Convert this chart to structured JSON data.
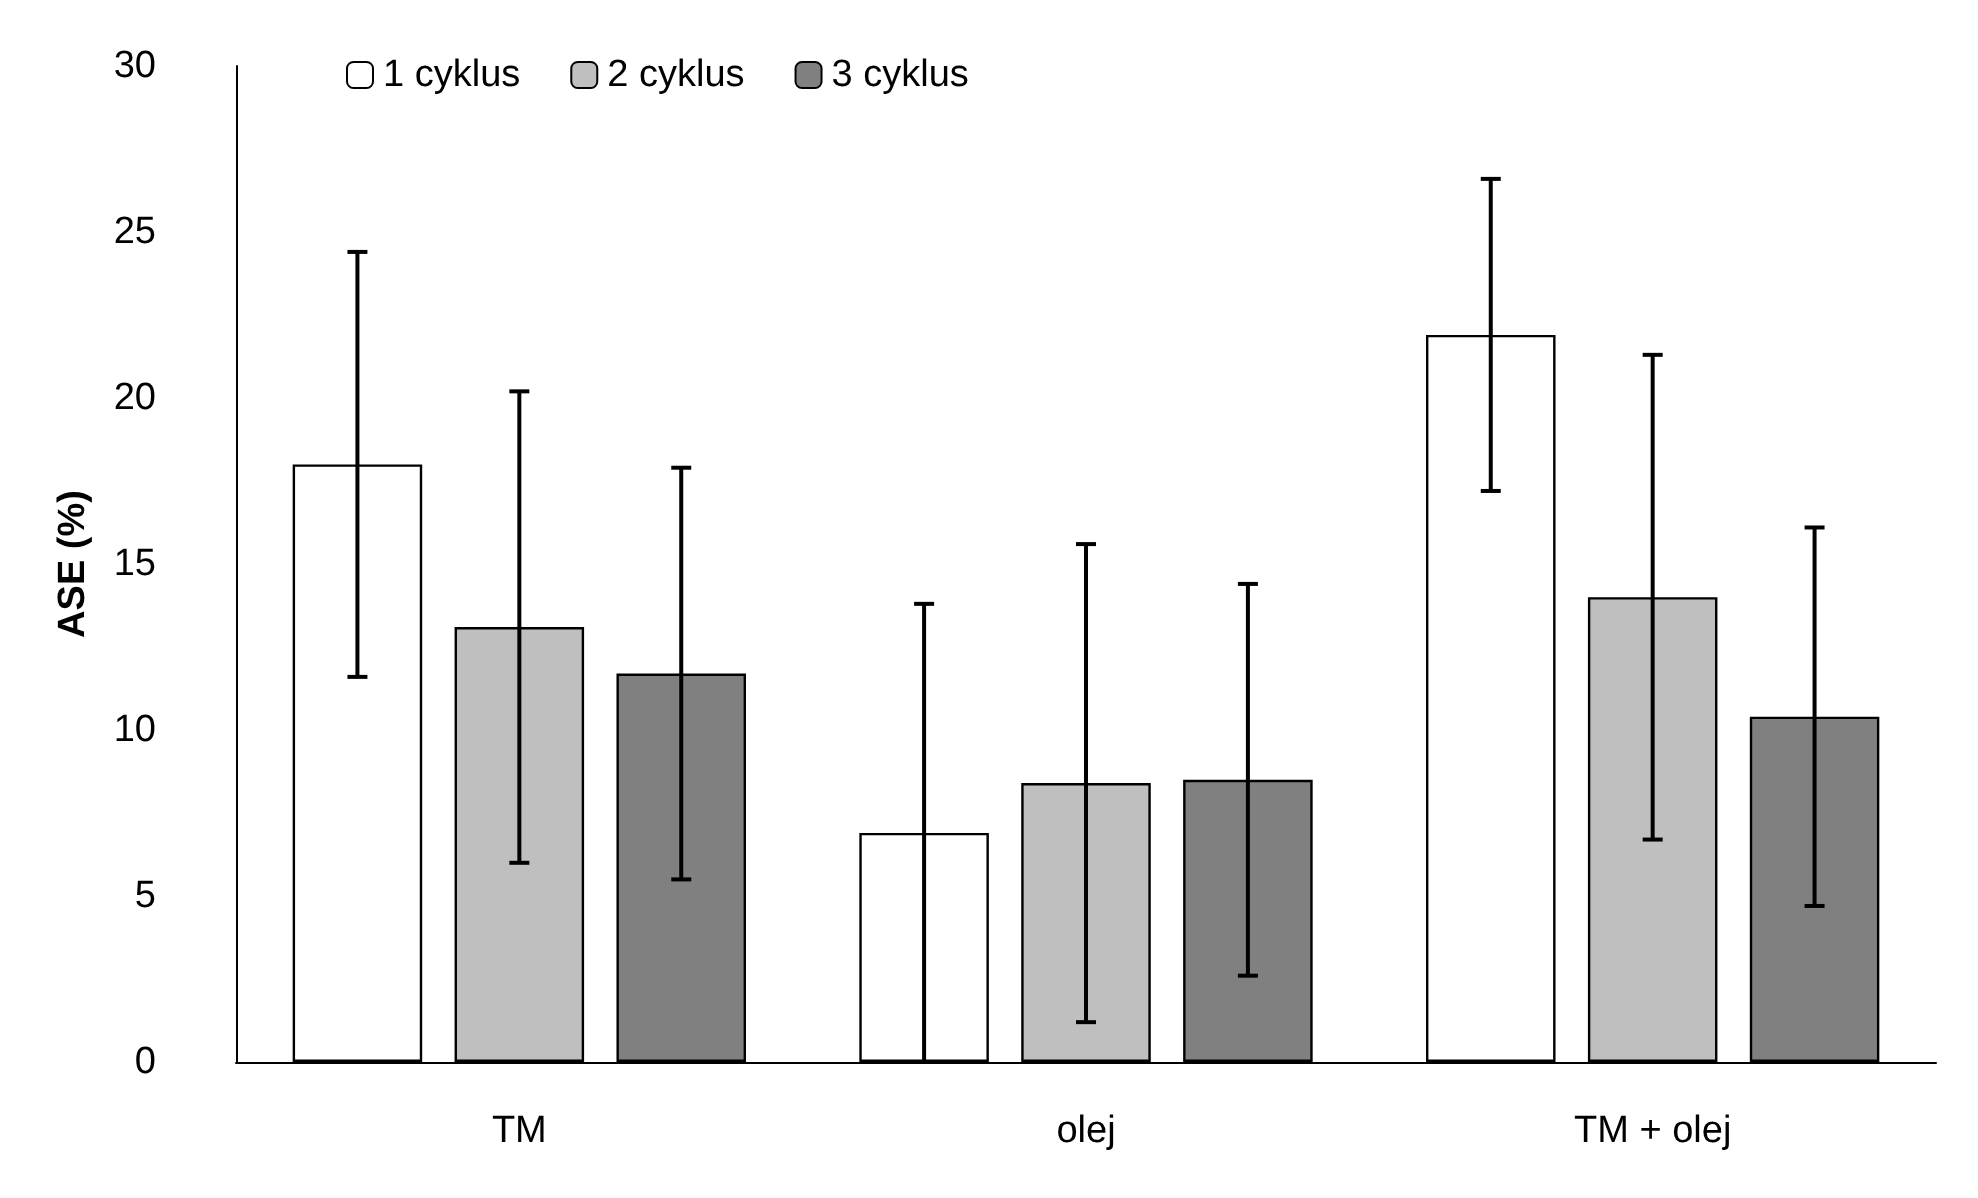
{
  "chart_data": {
    "type": "bar",
    "ylabel": "ASE (%)",
    "categories": [
      "TM",
      "olej",
      "TM + olej"
    ],
    "series": [
      {
        "name": "1 cyklus",
        "color": "#ffffff",
        "values": [
          18.0,
          6.9,
          21.9
        ],
        "errors": [
          6.4,
          6.9,
          4.7
        ]
      },
      {
        "name": "2 cyklus",
        "color": "#bfbfbf",
        "values": [
          13.1,
          8.4,
          14.0
        ],
        "errors": [
          7.1,
          7.2,
          7.3
        ]
      },
      {
        "name": "3 cyklus",
        "color": "#808080",
        "values": [
          11.7,
          8.5,
          10.4
        ],
        "errors": [
          6.2,
          5.9,
          5.7
        ]
      }
    ],
    "ylim": [
      0,
      30
    ],
    "yticks": [
      0,
      5,
      10,
      15,
      20,
      25,
      30
    ],
    "grid": false,
    "legend": "top left"
  }
}
